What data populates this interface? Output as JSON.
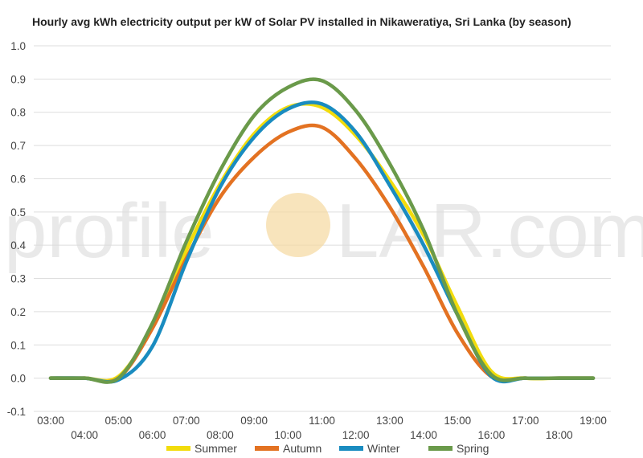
{
  "chart_data": {
    "type": "line",
    "title": "Hourly avg kWh electricity output per kW of Solar PV installed in Nikaweratiya, Sri Lanka (by season)",
    "xlabel": "",
    "ylabel": "",
    "x": [
      "03:00",
      "04:00",
      "05:00",
      "06:00",
      "07:00",
      "08:00",
      "09:00",
      "10:00",
      "11:00",
      "12:00",
      "13:00",
      "14:00",
      "15:00",
      "16:00",
      "17:00",
      "18:00",
      "19:00"
    ],
    "ylim": [
      -0.1,
      1.0
    ],
    "yticks": [
      "-0.1",
      "0.0",
      "0.1",
      "0.2",
      "0.3",
      "0.4",
      "0.5",
      "0.6",
      "0.7",
      "0.8",
      "0.9",
      "1.0"
    ],
    "grid": true,
    "legend_position": "bottom",
    "series": [
      {
        "name": "Summer",
        "color": "#f2dc0c",
        "values": [
          0.0,
          0.0,
          0.005,
          0.155,
          0.385,
          0.585,
          0.735,
          0.815,
          0.815,
          0.73,
          0.595,
          0.43,
          0.215,
          0.02,
          0.0,
          0.0,
          0.0
        ]
      },
      {
        "name": "Autumn",
        "color": "#e37222",
        "values": [
          0.0,
          0.0,
          0.0,
          0.15,
          0.36,
          0.545,
          0.665,
          0.74,
          0.755,
          0.66,
          0.515,
          0.335,
          0.135,
          0.005,
          0.0,
          0.0,
          0.0
        ]
      },
      {
        "name": "Winter",
        "color": "#1a8cc0",
        "values": [
          0.0,
          0.0,
          -0.005,
          0.095,
          0.35,
          0.575,
          0.725,
          0.81,
          0.825,
          0.74,
          0.58,
          0.4,
          0.19,
          0.005,
          0.0,
          0.0,
          0.0
        ]
      },
      {
        "name": "Spring",
        "color": "#6a9a4a",
        "values": [
          0.0,
          0.0,
          0.0,
          0.165,
          0.41,
          0.625,
          0.79,
          0.875,
          0.895,
          0.805,
          0.645,
          0.445,
          0.19,
          0.01,
          0.0,
          0.0,
          0.0
        ]
      }
    ]
  },
  "watermark": {
    "prefix": "profile",
    "suffix": "LAR.com"
  }
}
